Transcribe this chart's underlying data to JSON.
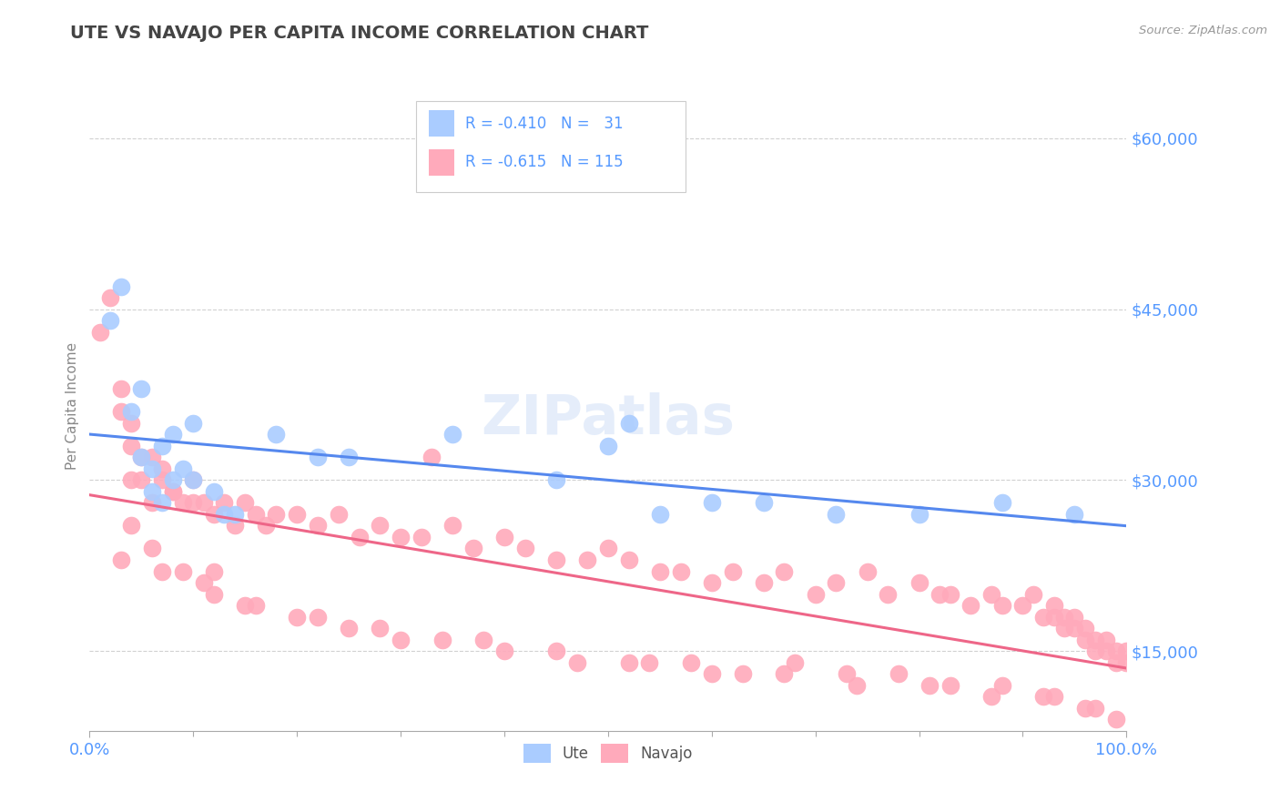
{
  "title": "UTE VS NAVAJO PER CAPITA INCOME CORRELATION CHART",
  "source_text": "Source: ZipAtlas.com",
  "ylabel": "Per Capita Income",
  "xlim": [
    0,
    1
  ],
  "ylim": [
    8000,
    65000
  ],
  "yticks": [
    15000,
    30000,
    45000,
    60000
  ],
  "ytick_labels": [
    "$15,000",
    "$30,000",
    "$45,000",
    "$60,000"
  ],
  "xtick_labels": [
    "0.0%",
    "100.0%"
  ],
  "background_color": "#ffffff",
  "grid_color": "#cccccc",
  "ute_color": "#aaccff",
  "navajo_color": "#ffaabb",
  "ute_line_color": "#5588ee",
  "navajo_line_color": "#ee6688",
  "title_color": "#444444",
  "axis_label_color": "#888888",
  "tick_label_color": "#5599ff",
  "ute_scatter_x": [
    0.02,
    0.03,
    0.04,
    0.05,
    0.05,
    0.06,
    0.06,
    0.07,
    0.07,
    0.08,
    0.08,
    0.09,
    0.1,
    0.1,
    0.12,
    0.13,
    0.14,
    0.18,
    0.22,
    0.25,
    0.35,
    0.45,
    0.5,
    0.52,
    0.55,
    0.6,
    0.65,
    0.72,
    0.8,
    0.88,
    0.95
  ],
  "ute_scatter_y": [
    44000,
    47000,
    36000,
    32000,
    38000,
    31000,
    29000,
    33000,
    28000,
    30000,
    34000,
    31000,
    35000,
    30000,
    29000,
    27000,
    27000,
    34000,
    32000,
    32000,
    34000,
    30000,
    33000,
    35000,
    27000,
    28000,
    28000,
    27000,
    27000,
    28000,
    27000
  ],
  "navajo_scatter_x": [
    0.01,
    0.02,
    0.03,
    0.03,
    0.04,
    0.04,
    0.05,
    0.05,
    0.06,
    0.06,
    0.07,
    0.07,
    0.08,
    0.08,
    0.09,
    0.1,
    0.1,
    0.11,
    0.12,
    0.13,
    0.14,
    0.15,
    0.16,
    0.17,
    0.18,
    0.2,
    0.22,
    0.24,
    0.26,
    0.28,
    0.3,
    0.32,
    0.33,
    0.35,
    0.37,
    0.4,
    0.42,
    0.45,
    0.48,
    0.5,
    0.52,
    0.55,
    0.57,
    0.6,
    0.62,
    0.65,
    0.67,
    0.7,
    0.72,
    0.75,
    0.77,
    0.8,
    0.82,
    0.83,
    0.85,
    0.87,
    0.88,
    0.9,
    0.91,
    0.92,
    0.93,
    0.93,
    0.94,
    0.94,
    0.95,
    0.95,
    0.96,
    0.96,
    0.97,
    0.97,
    0.98,
    0.98,
    0.99,
    0.99,
    1.0,
    1.0,
    0.04,
    0.06,
    0.09,
    0.12,
    0.15,
    0.2,
    0.25,
    0.3,
    0.38,
    0.45,
    0.52,
    0.58,
    0.63,
    0.68,
    0.73,
    0.78,
    0.83,
    0.88,
    0.92,
    0.96,
    0.03,
    0.07,
    0.11,
    0.16,
    0.22,
    0.28,
    0.34,
    0.4,
    0.47,
    0.54,
    0.6,
    0.67,
    0.74,
    0.81,
    0.87,
    0.93,
    0.97,
    0.99,
    0.04,
    0.12
  ],
  "navajo_scatter_y": [
    43000,
    46000,
    38000,
    36000,
    35000,
    33000,
    32000,
    30000,
    32000,
    28000,
    30000,
    31000,
    29000,
    29000,
    28000,
    30000,
    28000,
    28000,
    27000,
    28000,
    26000,
    28000,
    27000,
    26000,
    27000,
    27000,
    26000,
    27000,
    25000,
    26000,
    25000,
    25000,
    32000,
    26000,
    24000,
    25000,
    24000,
    23000,
    23000,
    24000,
    23000,
    22000,
    22000,
    21000,
    22000,
    21000,
    22000,
    20000,
    21000,
    22000,
    20000,
    21000,
    20000,
    20000,
    19000,
    20000,
    19000,
    19000,
    20000,
    18000,
    18000,
    19000,
    17000,
    18000,
    17000,
    18000,
    16000,
    17000,
    15000,
    16000,
    15000,
    16000,
    15000,
    14000,
    14000,
    15000,
    26000,
    24000,
    22000,
    20000,
    19000,
    18000,
    17000,
    16000,
    16000,
    15000,
    14000,
    14000,
    13000,
    14000,
    13000,
    13000,
    12000,
    12000,
    11000,
    10000,
    23000,
    22000,
    21000,
    19000,
    18000,
    17000,
    16000,
    15000,
    14000,
    14000,
    13000,
    13000,
    12000,
    12000,
    11000,
    11000,
    10000,
    9000,
    30000,
    22000
  ]
}
